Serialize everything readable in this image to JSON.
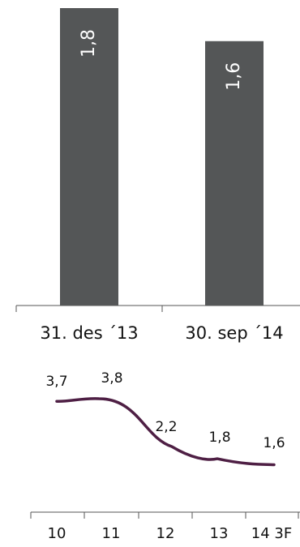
{
  "chart_data": [
    {
      "type": "bar",
      "categories": [
        "31. des ´13",
        "30. sep ´14"
      ],
      "values": [
        1.8,
        1.6
      ],
      "value_labels": [
        "1,8",
        "1,6"
      ],
      "colors": {
        "bar": "#545657",
        "axis": "#555555"
      }
    },
    {
      "type": "line",
      "x": [
        "10",
        "11",
        "12",
        "13",
        "14 3F"
      ],
      "values": [
        3.7,
        3.8,
        2.2,
        1.8,
        1.6
      ],
      "value_labels": [
        "3,7",
        "3,8",
        "2,2",
        "1,8",
        "1,6"
      ],
      "colors": {
        "line": "#4e1f44",
        "axis": "#555555"
      }
    }
  ]
}
